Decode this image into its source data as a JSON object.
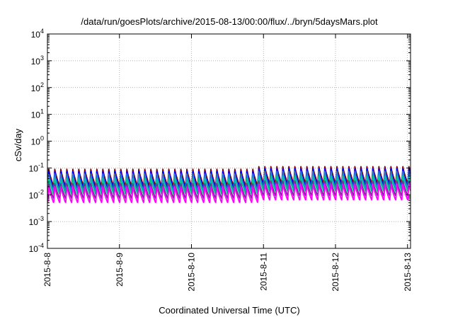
{
  "chart_data": {
    "type": "line",
    "title": "/data/run/goesPlots/archive/2015-08-13/00:00/flux/../bryn/5daysMars.plot",
    "xlabel": "Coordinated Universal Time (UTC)",
    "ylabel": "cSv/day",
    "yscale": "log",
    "ylim": [
      0.0001,
      10000
    ],
    "xlim": [
      "2015-08-08T00:00",
      "2015-08-13T01:00"
    ],
    "x_ticks": [
      "2015-8-8",
      "2015-8-9",
      "2015-8-10",
      "2015-8-11",
      "2015-8-12",
      "2015-8-13"
    ],
    "y_ticks": [
      {
        "base": "10",
        "exp": "-4"
      },
      {
        "base": "10",
        "exp": "-3"
      },
      {
        "base": "10",
        "exp": "-2"
      },
      {
        "base": "10",
        "exp": "-1"
      },
      {
        "base": "10",
        "exp": "0"
      },
      {
        "base": "10",
        "exp": "1"
      },
      {
        "base": "10",
        "exp": "2"
      },
      {
        "base": "10",
        "exp": "3"
      },
      {
        "base": "10",
        "exp": "4"
      }
    ],
    "grid": true,
    "legend": "none",
    "pattern": {
      "period_hours": 2,
      "start": "2015-08-08T00:00",
      "end": "2015-08-13T01:00",
      "level_shift_at": "2015-08-10T21:00",
      "shift_factor": 1.25
    },
    "series": [
      {
        "color": "#8b0000",
        "peak": 0.09,
        "trough": 0.022
      },
      {
        "color": "#0000ff",
        "peak": 0.075,
        "trough": 0.017
      },
      {
        "color": "#2d7fd0",
        "peak": 0.06,
        "trough": 0.014
      },
      {
        "color": "#00cc99",
        "peak": 0.04,
        "trough": 0.011
      },
      {
        "color": "#6b2e8f",
        "peak": 0.026,
        "trough": 0.0075
      },
      {
        "color": "#ff00ff",
        "peak": 0.02,
        "trough": 0.0052
      }
    ]
  }
}
